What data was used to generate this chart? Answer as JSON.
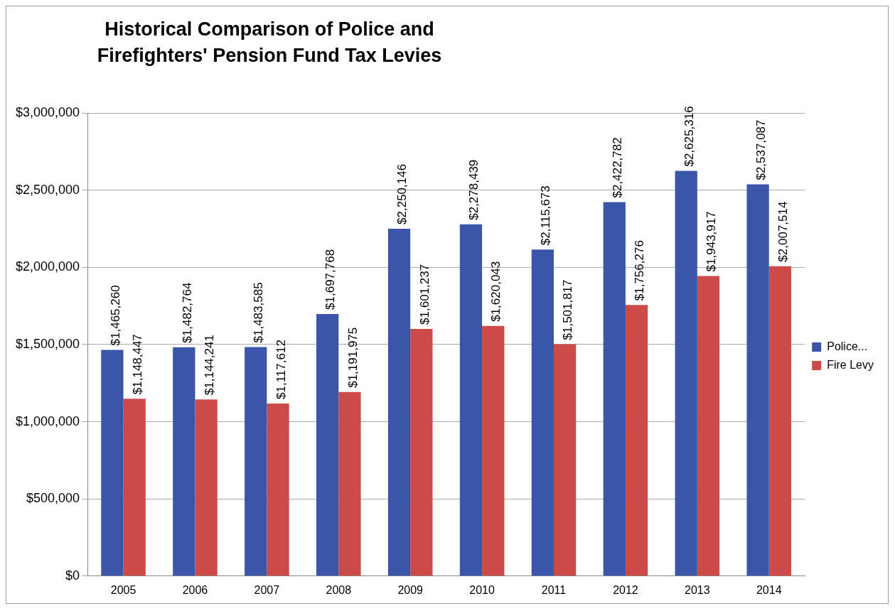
{
  "chart_data": {
    "type": "bar",
    "title": "Historical Comparison of Police and Firefighters' Pension Fund Tax Levies",
    "categories": [
      "2005",
      "2006",
      "2007",
      "2008",
      "2009",
      "2010",
      "2011",
      "2012",
      "2013",
      "2014"
    ],
    "series": [
      {
        "name": "Police...",
        "color": "#3b56a8",
        "values": [
          1465260,
          1482764,
          1483585,
          1697768,
          2250146,
          2278439,
          2115673,
          2422782,
          2625316,
          2537087
        ],
        "value_labels": [
          "$1,465,260",
          "$1,482,764",
          "$1,483,585",
          "$1,697,768",
          "$2,250,146",
          "$2,278,439",
          "$2,115,673",
          "$2,422,782",
          "$2,625,316",
          "$2,537,087"
        ]
      },
      {
        "name": "Fire Levy",
        "color": "#cc4b48",
        "values": [
          1148447,
          1144241,
          1117612,
          1191975,
          1601237,
          1620043,
          1501817,
          1756276,
          1943917,
          2007514
        ],
        "value_labels": [
          "$1,148,447",
          "$1,144,241",
          "$1,117,612",
          "$1,191,975",
          "$1,601,237",
          "$1,620,043",
          "$1,501,817",
          "$1,756,276",
          "$1,943,917",
          "$2,007,514"
        ]
      }
    ],
    "ylim": [
      0,
      3000000
    ],
    "yticks": [
      {
        "value": 0,
        "label": "$0"
      },
      {
        "value": 500000,
        "label": "$500,000"
      },
      {
        "value": 1000000,
        "label": "$1,000,000"
      },
      {
        "value": 1500000,
        "label": "$1,500,000"
      },
      {
        "value": 2000000,
        "label": "$2,000,000"
      },
      {
        "value": 2500000,
        "label": "$2,500,000"
      },
      {
        "value": 3000000,
        "label": "$3,000,000"
      }
    ],
    "grid": "y",
    "legend": "right"
  }
}
